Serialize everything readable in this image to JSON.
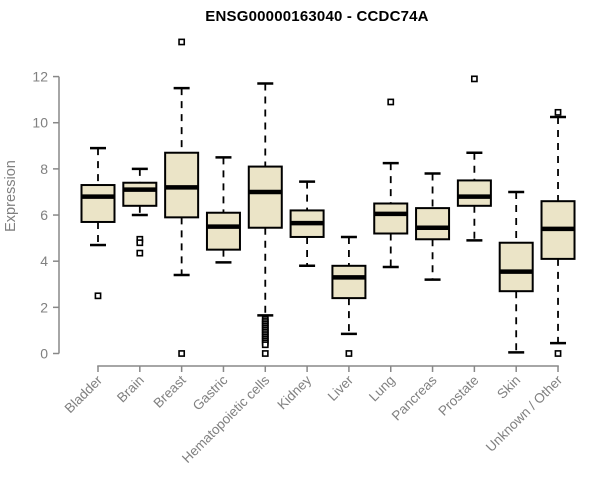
{
  "chart_data": {
    "type": "boxplot",
    "title": "ENSG00000163040 - CCDC74A",
    "ylabel": "Expression",
    "xlabel": "",
    "yticks": [
      0,
      2,
      4,
      6,
      8,
      10,
      12
    ],
    "ylim": [
      0,
      12
    ],
    "grid": false,
    "legend": "none",
    "categories": [
      "Bladder",
      "Brain",
      "Breast",
      "Gastric",
      "Hematopoietic cells",
      "Kidney",
      "Liver",
      "Lung",
      "Pancreas",
      "Prostate",
      "Skin",
      "Unknown / Other"
    ],
    "series": [
      {
        "category": "Bladder",
        "whisker_low": 4.7,
        "q1": 5.7,
        "median": 6.8,
        "q3": 7.3,
        "whisker_high": 8.9,
        "outliers": [
          2.5
        ]
      },
      {
        "category": "Brain",
        "whisker_low": 6.0,
        "q1": 6.4,
        "median": 7.1,
        "q3": 7.4,
        "whisker_high": 8.0,
        "outliers": [
          4.95,
          4.8,
          4.35
        ]
      },
      {
        "category": "Breast",
        "whisker_low": 3.4,
        "q1": 5.9,
        "median": 7.2,
        "q3": 8.7,
        "whisker_high": 11.5,
        "outliers": [
          13.5,
          0.0
        ]
      },
      {
        "category": "Gastric",
        "whisker_low": 3.95,
        "q1": 4.5,
        "median": 5.5,
        "q3": 6.1,
        "whisker_high": 8.5,
        "outliers": []
      },
      {
        "category": "Hematopoietic cells",
        "whisker_low": 1.65,
        "q1": 5.45,
        "median": 7.0,
        "q3": 8.1,
        "whisker_high": 11.7,
        "outliers": [
          1.5,
          1.42,
          1.34,
          1.26,
          1.18,
          1.1,
          1.02,
          0.94,
          0.86,
          0.78,
          0.7,
          0.62,
          0.54,
          0.46,
          0.38,
          0.0
        ]
      },
      {
        "category": "Kidney",
        "whisker_low": 3.8,
        "q1": 5.05,
        "median": 5.65,
        "q3": 6.2,
        "whisker_high": 7.45,
        "outliers": []
      },
      {
        "category": "Liver",
        "whisker_low": 0.85,
        "q1": 2.4,
        "median": 3.3,
        "q3": 3.8,
        "whisker_high": 5.05,
        "outliers": [
          0.0
        ]
      },
      {
        "category": "Lung",
        "whisker_low": 3.75,
        "q1": 5.2,
        "median": 6.05,
        "q3": 6.5,
        "whisker_high": 8.25,
        "outliers": [
          10.9
        ]
      },
      {
        "category": "Pancreas",
        "whisker_low": 3.2,
        "q1": 4.95,
        "median": 5.45,
        "q3": 6.3,
        "whisker_high": 7.8,
        "outliers": []
      },
      {
        "category": "Prostate",
        "whisker_low": 4.9,
        "q1": 6.4,
        "median": 6.8,
        "q3": 7.5,
        "whisker_high": 8.7,
        "outliers": [
          11.9
        ]
      },
      {
        "category": "Skin",
        "whisker_low": 0.05,
        "q1": 2.7,
        "median": 3.55,
        "q3": 4.8,
        "whisker_high": 7.0,
        "outliers": []
      },
      {
        "category": "Unknown / Other",
        "whisker_low": 0.45,
        "q1": 4.1,
        "median": 5.4,
        "q3": 6.6,
        "whisker_high": 10.25,
        "outliers": [
          10.45,
          0.0
        ]
      }
    ],
    "colors": {
      "box_fill": "#EBE4C7",
      "box_stroke": "#000000",
      "median": "#000000",
      "axis": "#888888",
      "tick_label": "#808080",
      "title": "#000000",
      "background": "#FFFFFF"
    }
  }
}
